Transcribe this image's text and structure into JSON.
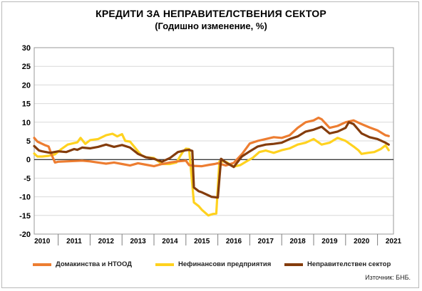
{
  "title": "КРЕДИТИ ЗА НЕПРАВИТЕЛСТВЕНИЯ СЕКТОР",
  "subtitle": "(Годишно изменение, %)",
  "source": "Източник: БНБ.",
  "colors": {
    "households": "#ed7d31",
    "corporates": "#ffd21f",
    "nongov": "#843c0c",
    "grid": "#d9d9d9",
    "axis": "#000000"
  },
  "chart_data": {
    "type": "line",
    "title": "КРЕДИТИ ЗА НЕПРАВИТЕЛСТВЕНИЯ СЕКТОР",
    "subtitle": "(Годишно изменение, %)",
    "xlabel": "",
    "ylabel": "",
    "ylim": [
      -20,
      30
    ],
    "yticks": [
      "30",
      "25",
      "20",
      "15",
      "10",
      "5",
      "0",
      "-5",
      "-10",
      "-15",
      "-20"
    ],
    "xlim": [
      2009.75,
      2021.0
    ],
    "xticks": [
      "2010",
      "2011",
      "2012",
      "2013",
      "2014",
      "2015",
      "2016",
      "2017",
      "2018",
      "2019",
      "2020",
      "2021"
    ],
    "grid": true,
    "legend_position": "bottom",
    "series": [
      {
        "name": "Домакинства и НТООД",
        "x": [
          2009.75,
          2009.85,
          2010.0,
          2010.1,
          2010.2,
          2010.3,
          2010.4,
          2010.5,
          2010.75,
          2011.0,
          2011.25,
          2011.5,
          2011.75,
          2012.0,
          2012.25,
          2012.5,
          2012.75,
          2013.0,
          2013.25,
          2013.5,
          2013.75,
          2014.0,
          2014.25,
          2014.5,
          2014.6,
          2014.75,
          2015.0,
          2015.25,
          2015.4,
          2015.5,
          2015.75,
          2016.0,
          2016.25,
          2016.5,
          2016.75,
          2017.0,
          2017.25,
          2017.5,
          2017.75,
          2018.0,
          2018.25,
          2018.5,
          2018.65,
          2018.75,
          2019.0,
          2019.25,
          2019.5,
          2019.75,
          2020.0,
          2020.25,
          2020.5,
          2020.75,
          2020.85
        ],
        "values": [
          5.8,
          4.8,
          4.2,
          3.8,
          3.5,
          1.2,
          -0.8,
          -0.6,
          -0.5,
          -0.4,
          -0.3,
          -0.5,
          -0.8,
          -1.1,
          -0.8,
          -1.2,
          -1.6,
          -1.0,
          -1.4,
          -1.8,
          -1.2,
          -0.8,
          -0.5,
          -0.3,
          -1.5,
          -1.7,
          -1.8,
          -1.4,
          -1.2,
          -1.0,
          -1.6,
          -0.9,
          1.4,
          4.3,
          5.0,
          5.5,
          6.0,
          5.8,
          6.5,
          8.5,
          10.0,
          10.5,
          11.2,
          10.8,
          8.5,
          9.0,
          10.0,
          10.5,
          9.5,
          8.6,
          7.8,
          6.5,
          6.3
        ]
      },
      {
        "name": "Нефинансови предприятия",
        "x": [
          2009.75,
          2009.85,
          2010.0,
          2010.2,
          2010.4,
          2010.6,
          2010.8,
          2011.0,
          2011.1,
          2011.2,
          2011.35,
          2011.5,
          2011.75,
          2012.0,
          2012.2,
          2012.35,
          2012.5,
          2012.6,
          2012.75,
          2013.0,
          2013.1,
          2013.25,
          2013.5,
          2013.75,
          2014.0,
          2014.2,
          2014.4,
          2014.5,
          2014.6,
          2014.75,
          2014.9,
          2015.0,
          2015.2,
          2015.35,
          2015.45,
          2015.55,
          2015.75,
          2016.0,
          2016.2,
          2016.4,
          2016.6,
          2016.8,
          2017.0,
          2017.25,
          2017.5,
          2017.75,
          2018.0,
          2018.25,
          2018.5,
          2018.75,
          2019.0,
          2019.25,
          2019.5,
          2019.75,
          2019.9,
          2020.0,
          2020.2,
          2020.4,
          2020.6,
          2020.75,
          2020.85
        ],
        "values": [
          1.6,
          0.8,
          0.8,
          1.0,
          1.4,
          2.8,
          4.0,
          4.4,
          4.6,
          5.8,
          4.2,
          5.2,
          5.5,
          6.5,
          6.9,
          6.2,
          6.8,
          5.0,
          4.8,
          2.2,
          1.2,
          0.6,
          0.4,
          -1.2,
          -1.2,
          -0.8,
          2.0,
          2.9,
          2.8,
          -11.5,
          -12.5,
          -13.5,
          -15.0,
          -14.6,
          -14.5,
          -0.5,
          -0.6,
          -1.9,
          -1.5,
          -0.5,
          0.5,
          2.0,
          2.4,
          1.8,
          2.5,
          3.0,
          4.0,
          4.5,
          5.5,
          4.0,
          4.5,
          5.8,
          5.0,
          3.5,
          2.5,
          1.5,
          1.8,
          2.0,
          2.8,
          3.8,
          2.5
        ]
      },
      {
        "name": "Неправителствен сектор",
        "x": [
          2009.75,
          2009.9,
          2010.0,
          2010.25,
          2010.5,
          2010.75,
          2011.0,
          2011.1,
          2011.25,
          2011.5,
          2011.75,
          2012.0,
          2012.25,
          2012.5,
          2012.75,
          2013.0,
          2013.25,
          2013.5,
          2013.75,
          2014.0,
          2014.25,
          2014.5,
          2014.6,
          2014.7,
          2014.75,
          2014.9,
          2015.0,
          2015.2,
          2015.3,
          2015.4,
          2015.5,
          2015.6,
          2015.75,
          2016.0,
          2016.25,
          2016.5,
          2016.75,
          2017.0,
          2017.25,
          2017.5,
          2017.75,
          2018.0,
          2018.25,
          2018.5,
          2018.75,
          2019.0,
          2019.25,
          2019.5,
          2019.6,
          2019.75,
          2020.0,
          2020.25,
          2020.5,
          2020.75,
          2020.85
        ],
        "values": [
          3.6,
          2.4,
          2.2,
          1.8,
          2.2,
          2.0,
          2.8,
          2.6,
          3.2,
          3.0,
          3.4,
          4.0,
          3.4,
          3.9,
          3.2,
          1.5,
          0.6,
          0.2,
          -0.6,
          0.4,
          2.0,
          2.5,
          2.6,
          2.3,
          -7.5,
          -8.5,
          -8.8,
          -9.6,
          -10.0,
          -10.1,
          -10.2,
          0.2,
          -0.8,
          -2.0,
          0.8,
          2.2,
          3.5,
          4.0,
          4.2,
          4.5,
          5.5,
          6.2,
          7.5,
          8.0,
          8.8,
          7.0,
          7.5,
          8.5,
          10.0,
          9.5,
          7.0,
          6.0,
          5.5,
          4.5,
          4.0
        ]
      }
    ]
  }
}
